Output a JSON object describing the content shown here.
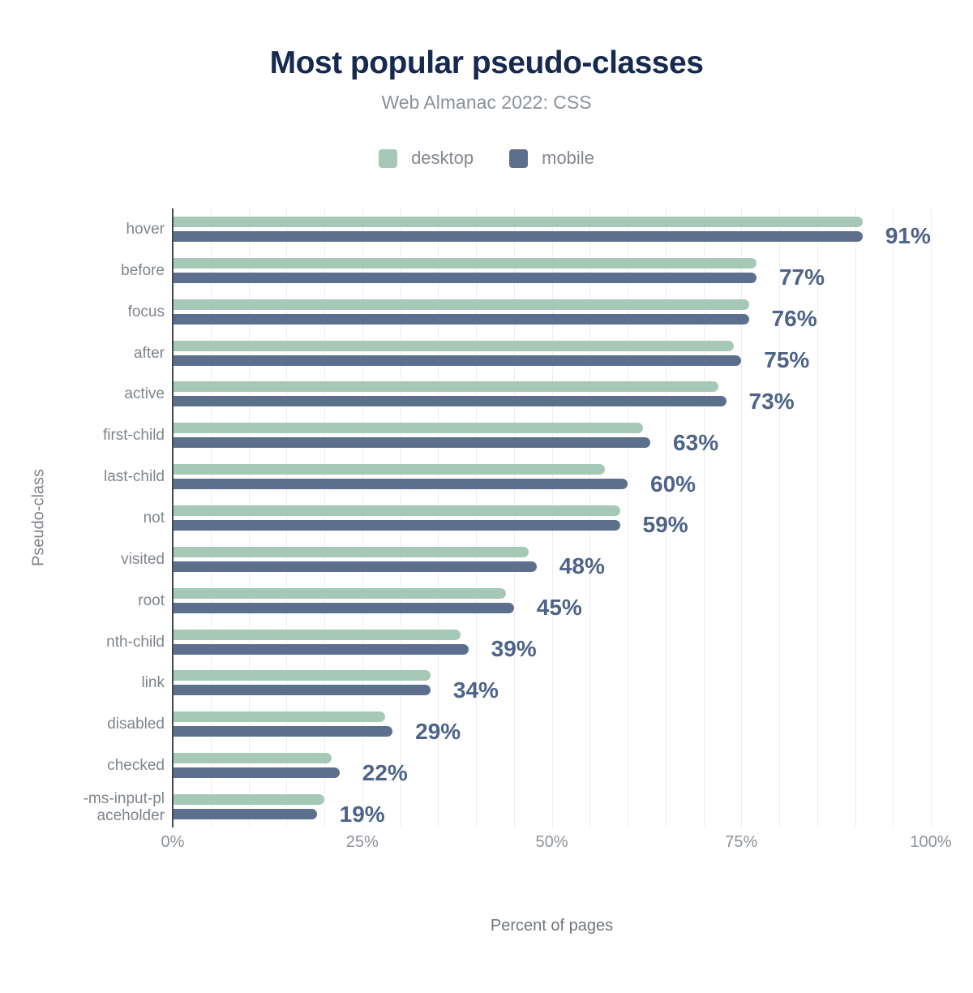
{
  "header": {
    "title": "Most popular pseudo-classes",
    "subtitle": "Web Almanac 2022: CSS"
  },
  "chart_data": {
    "type": "bar",
    "orientation": "horizontal",
    "title": "Most popular pseudo-classes",
    "subtitle": "Web Almanac 2022: CSS",
    "xlabel": "Percent of pages",
    "ylabel": "Pseudo-class",
    "xlim": [
      0,
      100
    ],
    "x_ticks": [
      "0%",
      "25%",
      "50%",
      "75%",
      "100%"
    ],
    "x_tick_values": [
      0,
      25,
      50,
      75,
      100
    ],
    "grid_step_percent": 5,
    "legend_position": "top",
    "categories": [
      "hover",
      "before",
      "focus",
      "after",
      "active",
      "first-child",
      "last-child",
      "not",
      "visited",
      "root",
      "nth-child",
      "link",
      "disabled",
      "checked",
      "-ms-input-placeholder"
    ],
    "category_display_override": {
      "-ms-input-placeholder": "-ms-input-pl\naceholder"
    },
    "series": [
      {
        "name": "desktop",
        "color": "#a5c9b6",
        "values": [
          91,
          77,
          76,
          74,
          72,
          62,
          57,
          59,
          47,
          44,
          38,
          34,
          28,
          21,
          20
        ]
      },
      {
        "name": "mobile",
        "color": "#5c708e",
        "values": [
          91,
          77,
          76,
          75,
          73,
          63,
          60,
          59,
          48,
          45,
          39,
          34,
          29,
          22,
          19
        ]
      }
    ],
    "value_labels": [
      "91%",
      "77%",
      "76%",
      "75%",
      "73%",
      "63%",
      "60%",
      "59%",
      "48%",
      "45%",
      "39%",
      "34%",
      "29%",
      "22%",
      "19%"
    ],
    "value_label_series": "mobile"
  },
  "colors": {
    "title": "#16294f",
    "subtitle": "#8b9199",
    "desktop_bar": "#a5c9b6",
    "mobile_bar": "#5c708e",
    "value_label": "#4d6388",
    "axis_line": "#404652",
    "gridline": "#ededed",
    "tick_text": "#8b9199",
    "category_text": "#7f848c",
    "background": "#ffffff"
  }
}
